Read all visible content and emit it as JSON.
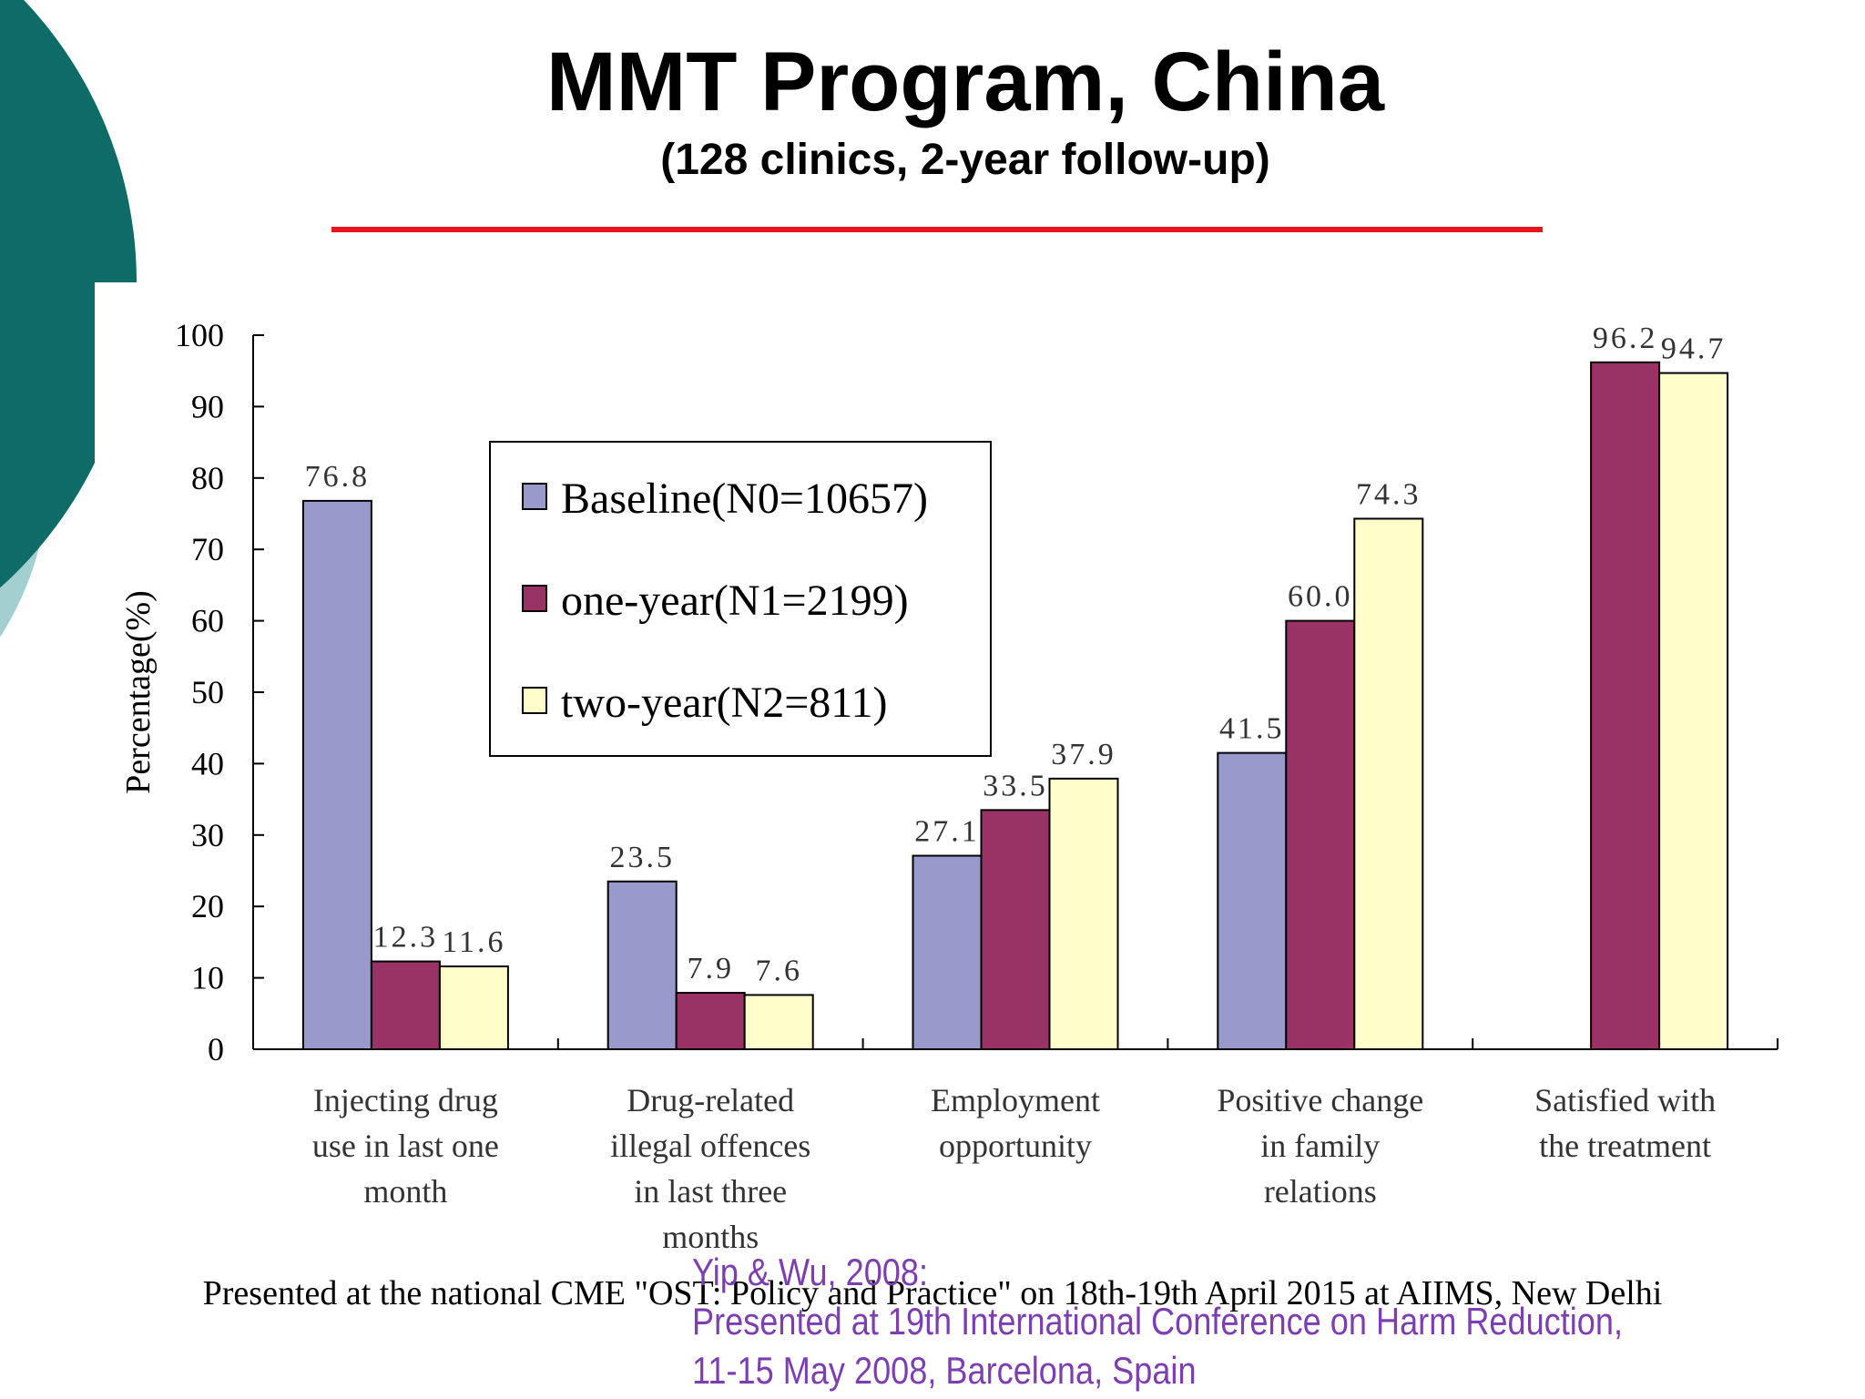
{
  "slide": {
    "title": "MMT Program, China",
    "subtitle": "(128 clinics, 2-year follow-up)",
    "footer": "Presented at the national CME \"OST: Policy and Practice\" on 18th-19th April 2015 at AIIMS, New Delhi",
    "citation": {
      "line1": "Yip & Wu, 2008:",
      "line2": "Presented at 19th International Conference on Harm Reduction,",
      "line3": "11-15 May 2008, Barcelona, Spain"
    },
    "colors": {
      "rule": "#e8141c",
      "teal_dark": "#0e6b66",
      "teal_light": "#a3cfd0",
      "citation_text": "#7b3fb0"
    }
  },
  "chart_data": {
    "type": "bar",
    "title": "",
    "ylabel": "Percentage(%)",
    "xlabel": "",
    "ylim": [
      0,
      100
    ],
    "yticks": [
      "0",
      "10",
      "20",
      "30",
      "40",
      "50",
      "60",
      "70",
      "80",
      "90",
      "100"
    ],
    "legend_position": "top-center",
    "grid": false,
    "categories": [
      [
        "Injecting drug",
        "use in last one",
        "month"
      ],
      [
        "Drug-related",
        "illegal offences",
        "in last three",
        "months"
      ],
      [
        "Employment",
        "opportunity"
      ],
      [
        "Positive change",
        "in family",
        "relations"
      ],
      [
        "Satisfied with",
        "the treatment"
      ]
    ],
    "series": [
      {
        "name": "Baseline(N0=10657)",
        "color": "#9999cc",
        "values": [
          76.8,
          23.5,
          27.1,
          41.5,
          null
        ],
        "labels": [
          "76.8",
          "23.5",
          "27.1",
          "41.5",
          ""
        ]
      },
      {
        "name": "one-year(N1=2199)",
        "color": "#993366",
        "values": [
          12.3,
          7.9,
          33.5,
          60.0,
          96.2
        ],
        "labels": [
          "12.3",
          "7.9",
          "33.5",
          "60.0",
          "96.2"
        ]
      },
      {
        "name": "two-year(N2=811)",
        "color": "#ffffcc",
        "values": [
          11.6,
          7.6,
          37.9,
          74.3,
          94.7
        ],
        "labels": [
          "11.6",
          "7.6",
          "37.9",
          "74.3",
          "94.7"
        ]
      }
    ]
  }
}
